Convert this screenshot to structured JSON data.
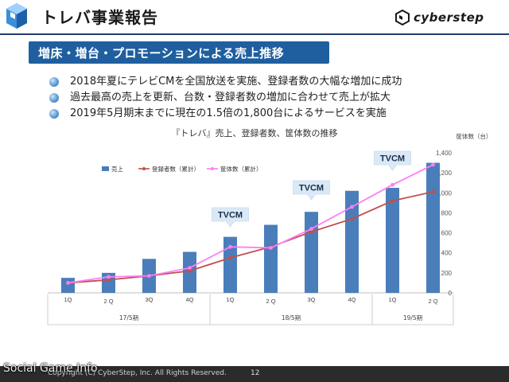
{
  "header": {
    "title": "トレバ事業報告",
    "brand": "cyberstep"
  },
  "section": {
    "heading": "増床・増台・プロモーションによる売上推移"
  },
  "bullets": [
    "2018年夏にテレビCMを全国放送を実施、登録者数の大幅な増加に成功",
    "過去最高の売上を更新、台数・登録者数の増加に合わせて売上が拡大",
    "2019年5月期末までに現在の1.5倍の1,800台によるサービスを実施"
  ],
  "chart_data": {
    "type": "bar",
    "title": "『トレバ』売上、登録者数、筐体数の推移",
    "ylabel": "筐体数（台）",
    "ylim": [
      0,
      1400
    ],
    "y_ticks": [
      "0",
      "200",
      "400",
      "600",
      "800",
      "1,000",
      "1,200",
      "1,400"
    ],
    "categories": [
      "1Q",
      "2Q",
      "3Q",
      "4Q",
      "1Q",
      "2Q",
      "3Q",
      "4Q",
      "1Q",
      "2Q"
    ],
    "category_labels": [
      "1Q",
      "2 Q",
      "3Q",
      "4Q",
      "1Q",
      "2 Q",
      "3Q",
      "4Q",
      "1Q",
      "2 Q"
    ],
    "periods": [
      {
        "label": "17/5期",
        "start": 0,
        "end": 3
      },
      {
        "label": "18/5期",
        "start": 4,
        "end": 7
      },
      {
        "label": "19/5期",
        "start": 8,
        "end": 9
      }
    ],
    "legend": [
      "売上",
      "登録者数（累計）",
      "筐体数（累計）"
    ],
    "legend_position": "top-left",
    "grid": false,
    "series": [
      {
        "name": "売上",
        "kind": "bar",
        "color": "#4a7ebb",
        "values": [
          150,
          200,
          340,
          410,
          560,
          680,
          810,
          1020,
          1050,
          1300
        ]
      },
      {
        "name": "登録者数（累計）",
        "kind": "line",
        "color": "#c0504d",
        "values": [
          100,
          130,
          170,
          220,
          350,
          460,
          610,
          740,
          920,
          1010
        ]
      },
      {
        "name": "筐体数（累計）",
        "kind": "line",
        "color": "#ff7df5",
        "values": [
          100,
          160,
          170,
          250,
          460,
          450,
          640,
          860,
          1080,
          1280
        ]
      }
    ],
    "annotations": [
      {
        "text": "TVCM",
        "category_index": 4
      },
      {
        "text": "TVCM",
        "category_index": 6
      },
      {
        "text": "TVCM",
        "category_index": 8
      }
    ]
  },
  "footer": {
    "copyright": "Copyright (C) CyberStep, Inc. All Rights Reserved.",
    "page": "12",
    "watermark": "Social Game Info"
  },
  "colors": {
    "accent": "#1f5fa0",
    "bar": "#4a7ebb",
    "registrants": "#c0504d",
    "cabinets": "#ff7df5",
    "callout": "#dbe9f7"
  }
}
